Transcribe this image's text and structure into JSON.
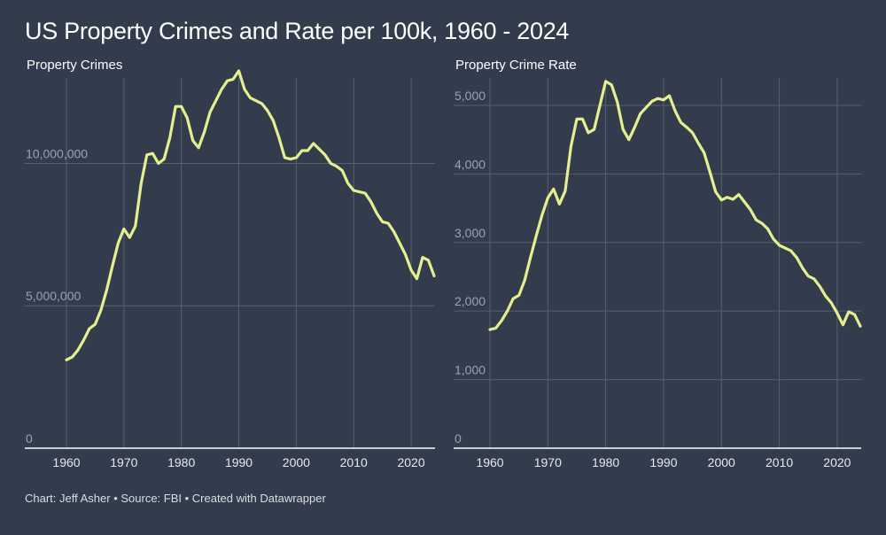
{
  "title": "US Property Crimes and Rate per 100k, 1960 - 2024",
  "footer": "Chart: Jeff Asher • Source: FBI • Created with Datawrapper",
  "colors": {
    "background": "#323c4c",
    "line": "#e5ef8f",
    "grid": "#556072"
  },
  "chart_data": [
    {
      "type": "line",
      "title": "Property Crimes",
      "xlabel": "",
      "ylabel": "",
      "xlim": [
        1955,
        2024
      ],
      "ylim": [
        0,
        13000000
      ],
      "x_ticks": [
        1960,
        1970,
        1980,
        1990,
        2000,
        2010,
        2020
      ],
      "y_ticks": [
        0,
        5000000,
        10000000
      ],
      "y_tick_labels": [
        "0",
        "5,000,000",
        "10,000,000"
      ],
      "grid": "both",
      "series": [
        {
          "x": [
            1960,
            1961,
            1962,
            1963,
            1964,
            1965,
            1966,
            1967,
            1968,
            1969,
            1970,
            1971,
            1972,
            1973,
            1974,
            1975,
            1976,
            1977,
            1978,
            1979,
            1980,
            1981,
            1982,
            1983,
            1984,
            1985,
            1986,
            1987,
            1988,
            1989,
            1990,
            1991,
            1992,
            1993,
            1994,
            1995,
            1996,
            1997,
            1998,
            1999,
            2000,
            2001,
            2002,
            2003,
            2004,
            2005,
            2006,
            2007,
            2008,
            2009,
            2010,
            2011,
            2012,
            2013,
            2014,
            2015,
            2016,
            2017,
            2018,
            2019,
            2020,
            2021,
            2022,
            2023,
            2024
          ],
          "values": [
            3100000,
            3200000,
            3450000,
            3800000,
            4200000,
            4350000,
            4850000,
            5550000,
            6400000,
            7200000,
            7700000,
            7400000,
            7800000,
            9300000,
            10300000,
            10350000,
            10000000,
            10150000,
            10900000,
            12000000,
            12000000,
            11600000,
            10800000,
            10550000,
            11100000,
            11800000,
            12200000,
            12600000,
            12900000,
            12950000,
            13250000,
            12600000,
            12300000,
            12200000,
            12100000,
            11850000,
            11500000,
            10900000,
            10200000,
            10150000,
            10200000,
            10450000,
            10450000,
            10700000,
            10500000,
            10300000,
            10000000,
            9900000,
            9750000,
            9300000,
            9050000,
            9000000,
            8950000,
            8650000,
            8250000,
            7950000,
            7900000,
            7600000,
            7200000,
            6800000,
            6250000,
            5950000,
            6700000,
            6600000,
            6050000
          ]
        }
      ]
    },
    {
      "type": "line",
      "title": "Property Crime Rate",
      "xlabel": "",
      "ylabel": "",
      "xlim": [
        1958,
        2024
      ],
      "ylim": [
        0,
        5400
      ],
      "x_ticks": [
        1960,
        1970,
        1980,
        1990,
        2000,
        2010,
        2020
      ],
      "y_ticks": [
        0,
        1000,
        2000,
        3000,
        4000,
        5000
      ],
      "y_tick_labels": [
        "0",
        "1,000",
        "2,000",
        "3,000",
        "4,000",
        "5,000"
      ],
      "grid": "both",
      "series": [
        {
          "x": [
            1960,
            1961,
            1962,
            1963,
            1964,
            1965,
            1966,
            1967,
            1968,
            1969,
            1970,
            1971,
            1972,
            1973,
            1974,
            1975,
            1976,
            1977,
            1978,
            1979,
            1980,
            1981,
            1982,
            1983,
            1984,
            1985,
            1986,
            1987,
            1988,
            1989,
            1990,
            1991,
            1992,
            1993,
            1994,
            1995,
            1996,
            1997,
            1998,
            1999,
            2000,
            2001,
            2002,
            2003,
            2004,
            2005,
            2006,
            2007,
            2008,
            2009,
            2010,
            2011,
            2012,
            2013,
            2014,
            2015,
            2016,
            2017,
            2018,
            2019,
            2020,
            2021,
            2022,
            2023,
            2024
          ],
          "values": [
            1730,
            1750,
            1860,
            2000,
            2180,
            2230,
            2450,
            2780,
            3100,
            3400,
            3650,
            3780,
            3560,
            3750,
            4400,
            4800,
            4800,
            4600,
            4650,
            5000,
            5350,
            5300,
            5050,
            4650,
            4500,
            4680,
            4880,
            4970,
            5060,
            5100,
            5080,
            5140,
            4920,
            4750,
            4680,
            4600,
            4450,
            4310,
            4030,
            3740,
            3620,
            3660,
            3630,
            3700,
            3590,
            3480,
            3330,
            3280,
            3200,
            3050,
            2960,
            2920,
            2880,
            2780,
            2630,
            2510,
            2470,
            2360,
            2220,
            2120,
            1970,
            1800,
            1990,
            1950,
            1780
          ]
        }
      ]
    }
  ]
}
